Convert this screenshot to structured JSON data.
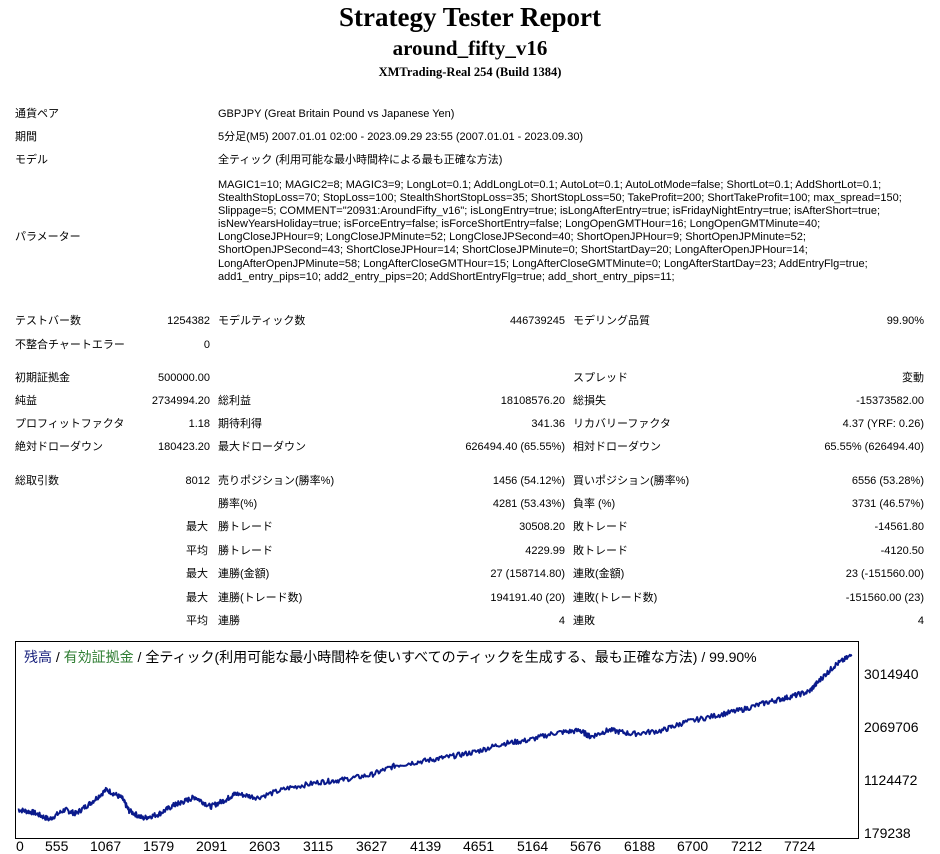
{
  "header": {
    "title": "Strategy Tester Report",
    "ea_name": "around_fifty_v16",
    "server": "XMTrading-Real 254 (Build 1384)"
  },
  "info": {
    "symbol_label": "通貨ペア",
    "symbol_value": "GBPJPY (Great Britain Pound vs Japanese Yen)",
    "period_label": "期間",
    "period_value": "5分足(M5) 2007.01.01 02:00 - 2023.09.29 23:55 (2007.01.01 - 2023.09.30)",
    "model_label": "モデル",
    "model_value": "全ティック (利用可能な最小時間枠による最も正確な方法)",
    "params_label": "パラメーター",
    "params_value": "MAGIC1=10; MAGIC2=8; MAGIC3=9; LongLot=0.1; AddLongLot=0.1; AutoLot=0.1; AutoLotMode=false; ShortLot=0.1; AddShortLot=0.1; StealthStopLoss=70; StopLoss=100; StealthShortStopLoss=35; ShortStopLoss=50; TakeProfit=200; ShortTakeProfit=100; max_spread=150; Slippage=5; COMMENT=\"20931:AroundFifty_v16\"; isLongEntry=true; isLongAfterEntry=true; isFridayNightEntry=true; isAfterShort=true; isNewYearsHoliday=true; isForceEntry=false; isForceShortEntry=false; LongOpenGMTHour=16; LongOpenGMTMinute=40; LongCloseJPHour=9; LongCloseJPMinute=52; LongCloseJPSecond=40; ShortOpenJPHour=9; ShortOpenJPMinute=52; ShortOpenJPSecond=43; ShortCloseJPHour=14; ShortCloseJPMinute=0; ShortStartDay=20; LongAfterOpenJPHour=14; LongAfterOpenJPMinute=58; LongAfterCloseGMTHour=15; LongAfterCloseGMTMinute=0; LongAfterStartDay=23; AddEntryFlg=true; add1_entry_pips=10; add2_entry_pips=20; AddShortEntryFlg=true; add_short_entry_pips=11;"
  },
  "stats": {
    "bars_label": "テストバー数",
    "bars_value": "1254382",
    "ticks_label": "モデルティック数",
    "ticks_value": "446739245",
    "quality_label": "モデリング品質",
    "quality_value": "99.90%",
    "mismatch_label": "不整合チャートエラー",
    "mismatch_value": "0",
    "deposit_label": "初期証拠金",
    "deposit_value": "500000.00",
    "spread_label": "スプレッド",
    "spread_value": "変動",
    "net_label": "純益",
    "net_value": "2734994.20",
    "gross_profit_label": "総利益",
    "gross_profit_value": "18108576.20",
    "gross_loss_label": "総損失",
    "gross_loss_value": "-15373582.00",
    "pf_label": "プロフィットファクタ",
    "pf_value": "1.18",
    "expected_label": "期待利得",
    "expected_value": "341.36",
    "recovery_label": "リカバリーファクタ",
    "recovery_value": "4.37 (YRF: 0.26)",
    "abs_dd_label": "絶対ドローダウン",
    "abs_dd_value": "180423.20",
    "max_dd_label": "最大ドローダウン",
    "max_dd_value": "626494.40 (65.55%)",
    "rel_dd_label": "相対ドローダウン",
    "rel_dd_value": "65.55% (626494.40)",
    "trades_label": "総取引数",
    "trades_value": "8012",
    "short_label": "売りポジション(勝率%)",
    "short_value": "1456 (54.12%)",
    "long_label": "買いポジション(勝率%)",
    "long_value": "6556 (53.28%)",
    "win_rate_label": "勝率(%)",
    "win_rate_value": "4281 (53.43%)",
    "loss_rate_label": "負率 (%)",
    "loss_rate_value": "3731 (46.57%)",
    "max_word": "最大",
    "avg_word": "平均",
    "largest_win_label": "勝トレード",
    "largest_win_value": "30508.20",
    "largest_loss_label": "敗トレード",
    "largest_loss_value": "-14561.80",
    "avg_win_label": "勝トレード",
    "avg_win_value": "4229.99",
    "avg_loss_label": "敗トレード",
    "avg_loss_value": "-4120.50",
    "max_consec_wins_label": "連勝(金額)",
    "max_consec_wins_value": "27 (158714.80)",
    "max_consec_losses_label": "連敗(金額)",
    "max_consec_losses_value": "23 (-151560.00)",
    "max_consec_profit_label": "連勝(トレード数)",
    "max_consec_profit_value": "194191.40 (20)",
    "max_consec_loss_label": "連敗(トレード数)",
    "max_consec_loss_value": "-151560.00 (23)",
    "avg_consec_wins_label": "連勝",
    "avg_consec_wins_value": "4",
    "avg_consec_losses_label": "連敗",
    "avg_consec_losses_value": "4"
  },
  "chart_legend": {
    "balance": "残高",
    "sep1": " / ",
    "equity": "有効証拠金",
    "rest": " / 全ティック(利用可能な最小時間枠を使いすべてのティックを生成する、最も正確な方法) / 99.90%",
    "balance_color": "#1a237e",
    "equity_color": "#2e7d32"
  },
  "chart_data": {
    "type": "line",
    "series_color": "#0a1a8c",
    "ylim": [
      179238,
      3250000
    ],
    "xlim": [
      0,
      8012
    ],
    "y_ticks": [
      "3014940",
      "2069706",
      "1124472",
      "179238"
    ],
    "x_ticks": [
      "0",
      "555",
      "1067",
      "1579",
      "2091",
      "2603",
      "3115",
      "3627",
      "4139",
      "4651",
      "5164",
      "5676",
      "6188",
      "6700",
      "7212",
      "7724"
    ],
    "series": [
      {
        "x": [
          0,
          150,
          300,
          450,
          555,
          700,
          850,
          1000,
          1067,
          1200,
          1350,
          1500,
          1579,
          1700,
          1850,
          2000,
          2091,
          2300,
          2603,
          2900,
          3115,
          3400,
          3627,
          3900,
          4139,
          4400,
          4651,
          4900,
          5164,
          5400,
          5500,
          5676,
          5900,
          6188,
          6400,
          6700,
          6950,
          7212,
          7400,
          7600,
          7724,
          7850,
          8012
        ],
        "values": [
          500000,
          450000,
          330000,
          500000,
          430000,
          620000,
          850000,
          700000,
          480000,
          350000,
          420000,
          580000,
          630000,
          720000,
          550000,
          680000,
          780000,
          710000,
          880000,
          980000,
          1020000,
          1110000,
          1270000,
          1350000,
          1420000,
          1510000,
          1650000,
          1710000,
          1840000,
          1880000,
          1770000,
          1890000,
          1820000,
          1880000,
          2020000,
          2140000,
          2240000,
          2380000,
          2460000,
          2560000,
          2800000,
          3020000,
          3200000
        ]
      }
    ]
  }
}
